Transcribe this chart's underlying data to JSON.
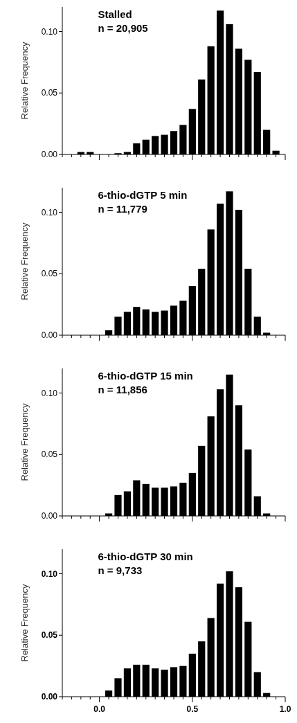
{
  "chart_data": [
    {
      "type": "histogram",
      "title": "Stalled",
      "subtitle": "n = 20,905",
      "ylabel": "Relative Frequency",
      "color": "#000000",
      "bins": [
        -0.125,
        -0.075,
        -0.025,
        0.025,
        0.075,
        0.125,
        0.175,
        0.225,
        0.275,
        0.325,
        0.375,
        0.425,
        0.475,
        0.525,
        0.575,
        0.625,
        0.675,
        0.725,
        0.775,
        0.825,
        0.875,
        0.925,
        0.975
      ],
      "values": [
        0.002,
        0.002,
        0,
        0,
        0.001,
        0.002,
        0.009,
        0.012,
        0.015,
        0.016,
        0.019,
        0.024,
        0.037,
        0.061,
        0.088,
        0.117,
        0.106,
        0.086,
        0.077,
        0.067,
        0.02,
        0.003
      ],
      "xlim": [
        -0.2,
        1.0
      ],
      "xticks": [
        {
          "value": -0.2,
          "label": null
        },
        {
          "value": -0.15,
          "label": null
        },
        {
          "value": -0.1,
          "label": null
        },
        {
          "value": -0.05,
          "label": null
        },
        {
          "value": 0,
          "label": null
        },
        {
          "value": 0.05,
          "label": null
        },
        {
          "value": 0.1,
          "label": null
        },
        {
          "value": 0.15,
          "label": null
        },
        {
          "value": 0.2,
          "label": null
        },
        {
          "value": 0.25,
          "label": null
        },
        {
          "value": 0.3,
          "label": null
        },
        {
          "value": 0.35,
          "label": null
        },
        {
          "value": 0.4,
          "label": null
        },
        {
          "value": 0.45,
          "label": null
        },
        {
          "value": 0.5,
          "label": null
        },
        {
          "value": 0.55,
          "label": null
        },
        {
          "value": 0.6,
          "label": null
        },
        {
          "value": 0.65,
          "label": null
        },
        {
          "value": 0.7,
          "label": null
        },
        {
          "value": 0.75,
          "label": null
        },
        {
          "value": 0.8,
          "label": null
        },
        {
          "value": 0.85,
          "label": null
        },
        {
          "value": 0.9,
          "label": null
        },
        {
          "value": 0.95,
          "label": null
        },
        {
          "value": 1.0,
          "label": null
        }
      ],
      "ylim": [
        0,
        0.12
      ],
      "yticks": [
        {
          "value": 0,
          "label": "0.00"
        },
        {
          "value": 0.05,
          "label": "0.05"
        },
        {
          "value": 0.1,
          "label": "0.10"
        }
      ],
      "tick_labels": "y"
    },
    {
      "type": "histogram",
      "title": "6-thio-dGTP 5 min",
      "subtitle": "n = 11,779",
      "ylabel": "Relative Frequency",
      "color": "#000000",
      "bins": [
        -0.125,
        -0.075,
        -0.025,
        0.025,
        0.075,
        0.125,
        0.175,
        0.225,
        0.275,
        0.325,
        0.375,
        0.425,
        0.475,
        0.525,
        0.575,
        0.625,
        0.675,
        0.725,
        0.775,
        0.825,
        0.875,
        0.925,
        0.975
      ],
      "values": [
        0,
        0,
        0,
        0.004,
        0.015,
        0.019,
        0.023,
        0.021,
        0.019,
        0.02,
        0.024,
        0.028,
        0.04,
        0.054,
        0.086,
        0.107,
        0.117,
        0.102,
        0.054,
        0.015,
        0.002,
        0
      ],
      "xlim": [
        -0.2,
        1.0
      ],
      "xticks": [
        {
          "value": -0.2,
          "label": null
        },
        {
          "value": -0.15,
          "label": null
        },
        {
          "value": -0.1,
          "label": null
        },
        {
          "value": -0.05,
          "label": null
        },
        {
          "value": 0,
          "label": null
        },
        {
          "value": 0.05,
          "label": null
        },
        {
          "value": 0.1,
          "label": null
        },
        {
          "value": 0.15,
          "label": null
        },
        {
          "value": 0.2,
          "label": null
        },
        {
          "value": 0.25,
          "label": null
        },
        {
          "value": 0.3,
          "label": null
        },
        {
          "value": 0.35,
          "label": null
        },
        {
          "value": 0.4,
          "label": null
        },
        {
          "value": 0.45,
          "label": null
        },
        {
          "value": 0.5,
          "label": null
        },
        {
          "value": 0.55,
          "label": null
        },
        {
          "value": 0.6,
          "label": null
        },
        {
          "value": 0.65,
          "label": null
        },
        {
          "value": 0.7,
          "label": null
        },
        {
          "value": 0.75,
          "label": null
        },
        {
          "value": 0.8,
          "label": null
        },
        {
          "value": 0.85,
          "label": null
        },
        {
          "value": 0.9,
          "label": null
        },
        {
          "value": 0.95,
          "label": null
        },
        {
          "value": 1.0,
          "label": null
        }
      ],
      "ylim": [
        0,
        0.12
      ],
      "yticks": [
        {
          "value": 0,
          "label": "0.00"
        },
        {
          "value": 0.05,
          "label": "0.05"
        },
        {
          "value": 0.1,
          "label": "0.10"
        }
      ],
      "tick_labels": "y"
    },
    {
      "type": "histogram",
      "title": "6-thio-dGTP 15 min",
      "subtitle": "n = 11,856",
      "ylabel": "Relative Frequency",
      "color": "#000000",
      "bins": [
        -0.125,
        -0.075,
        -0.025,
        0.025,
        0.075,
        0.125,
        0.175,
        0.225,
        0.275,
        0.325,
        0.375,
        0.425,
        0.475,
        0.525,
        0.575,
        0.625,
        0.675,
        0.725,
        0.775,
        0.825,
        0.875,
        0.925,
        0.975
      ],
      "values": [
        0,
        0,
        0,
        0.002,
        0.017,
        0.02,
        0.029,
        0.026,
        0.023,
        0.023,
        0.024,
        0.027,
        0.035,
        0.057,
        0.081,
        0.103,
        0.115,
        0.09,
        0.054,
        0.016,
        0.002,
        0
      ],
      "xlim": [
        -0.2,
        1.0
      ],
      "xticks": [
        {
          "value": -0.2,
          "label": null
        },
        {
          "value": -0.15,
          "label": null
        },
        {
          "value": -0.1,
          "label": null
        },
        {
          "value": -0.05,
          "label": null
        },
        {
          "value": 0,
          "label": null
        },
        {
          "value": 0.05,
          "label": null
        },
        {
          "value": 0.1,
          "label": null
        },
        {
          "value": 0.15,
          "label": null
        },
        {
          "value": 0.2,
          "label": null
        },
        {
          "value": 0.25,
          "label": null
        },
        {
          "value": 0.3,
          "label": null
        },
        {
          "value": 0.35,
          "label": null
        },
        {
          "value": 0.4,
          "label": null
        },
        {
          "value": 0.45,
          "label": null
        },
        {
          "value": 0.5,
          "label": null
        },
        {
          "value": 0.55,
          "label": null
        },
        {
          "value": 0.6,
          "label": null
        },
        {
          "value": 0.65,
          "label": null
        },
        {
          "value": 0.7,
          "label": null
        },
        {
          "value": 0.75,
          "label": null
        },
        {
          "value": 0.8,
          "label": null
        },
        {
          "value": 0.85,
          "label": null
        },
        {
          "value": 0.9,
          "label": null
        },
        {
          "value": 0.95,
          "label": null
        },
        {
          "value": 1.0,
          "label": null
        }
      ],
      "ylim": [
        0,
        0.12
      ],
      "yticks": [
        {
          "value": 0,
          "label": "0.00"
        },
        {
          "value": 0.05,
          "label": "0.05"
        },
        {
          "value": 0.1,
          "label": "0.10"
        }
      ],
      "tick_labels": "y"
    },
    {
      "type": "histogram",
      "title": "6-thio-dGTP 30 min",
      "subtitle": "n = 9,733",
      "ylabel": "Relative Frequency",
      "color": "#000000",
      "bins": [
        -0.125,
        -0.075,
        -0.025,
        0.025,
        0.075,
        0.125,
        0.175,
        0.225,
        0.275,
        0.325,
        0.375,
        0.425,
        0.475,
        0.525,
        0.575,
        0.625,
        0.675,
        0.725,
        0.775,
        0.825,
        0.875,
        0.925,
        0.975
      ],
      "values": [
        0,
        0,
        0,
        0.005,
        0.015,
        0.023,
        0.026,
        0.026,
        0.023,
        0.022,
        0.024,
        0.025,
        0.035,
        0.045,
        0.064,
        0.092,
        0.102,
        0.089,
        0.061,
        0.02,
        0.003,
        0
      ],
      "xlim": [
        -0.2,
        1.0
      ],
      "xticks": [
        {
          "value": -0.2,
          "label": null
        },
        {
          "value": -0.15,
          "label": null
        },
        {
          "value": -0.1,
          "label": null
        },
        {
          "value": -0.05,
          "label": null
        },
        {
          "value": 0,
          "label": "0.0"
        },
        {
          "value": 0.05,
          "label": null
        },
        {
          "value": 0.1,
          "label": null
        },
        {
          "value": 0.15,
          "label": null
        },
        {
          "value": 0.2,
          "label": null
        },
        {
          "value": 0.25,
          "label": null
        },
        {
          "value": 0.3,
          "label": null
        },
        {
          "value": 0.35,
          "label": null
        },
        {
          "value": 0.4,
          "label": null
        },
        {
          "value": 0.45,
          "label": null
        },
        {
          "value": 0.5,
          "label": "0.5"
        },
        {
          "value": 0.55,
          "label": null
        },
        {
          "value": 0.6,
          "label": null
        },
        {
          "value": 0.65,
          "label": null
        },
        {
          "value": 0.7,
          "label": null
        },
        {
          "value": 0.75,
          "label": null
        },
        {
          "value": 0.8,
          "label": null
        },
        {
          "value": 0.85,
          "label": null
        },
        {
          "value": 0.9,
          "label": null
        },
        {
          "value": 0.95,
          "label": null
        },
        {
          "value": 1.0,
          "label": "1.0"
        }
      ],
      "ylim": [
        0,
        0.12
      ],
      "yticks": [
        {
          "value": 0,
          "label": "0.00"
        },
        {
          "value": 0.05,
          "label": "0.05"
        },
        {
          "value": 0.1,
          "label": "0.10"
        }
      ]
    }
  ]
}
